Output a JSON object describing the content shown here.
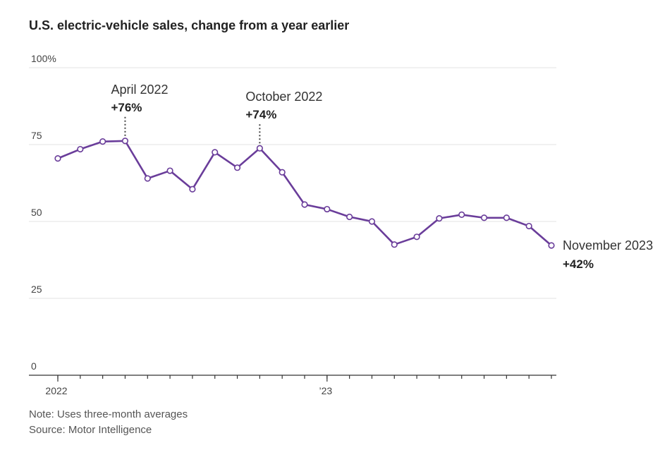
{
  "chart_data": {
    "type": "line",
    "title": "U.S. electric-vehicle sales, change from a year earlier",
    "y_unit_suffix": "%",
    "ylim": [
      0,
      100
    ],
    "yticks": [
      0,
      25,
      50,
      75,
      100
    ],
    "ytick_labels": [
      "0",
      "25",
      "50",
      "75",
      "100%"
    ],
    "x_start": "2022-01",
    "x_end": "2023-11",
    "x_labels": [
      {
        "date": "2022-01",
        "label": "2022"
      },
      {
        "date": "2023-01",
        "label": "’23"
      }
    ],
    "grid": true,
    "line_color": "#6a3d9a",
    "series": [
      {
        "x": [
          "2022-01",
          "2022-02",
          "2022-03",
          "2022-04",
          "2022-05",
          "2022-06",
          "2022-07",
          "2022-08",
          "2022-09",
          "2022-10",
          "2022-11",
          "2022-12",
          "2023-01",
          "2023-02",
          "2023-03",
          "2023-04",
          "2023-05",
          "2023-06",
          "2023-07",
          "2023-08",
          "2023-09",
          "2023-10",
          "2023-11"
        ],
        "values": [
          70.5,
          73.5,
          76,
          76.2,
          64,
          66.5,
          60.5,
          72.5,
          67.5,
          73.8,
          66,
          55.5,
          54,
          51.5,
          50,
          42.5,
          45,
          51,
          52.2,
          51.2,
          51.2,
          48.5,
          42.2
        ]
      }
    ],
    "annotations": [
      {
        "index": 3,
        "date_label": "April 2022",
        "value_label": "+76%"
      },
      {
        "index": 9,
        "date_label": "October 2022",
        "value_label": "+74%"
      },
      {
        "index": 22,
        "date_label": "November 2023",
        "value_label": "+42%"
      }
    ],
    "note": "Note: Uses three-month averages",
    "source": "Source: Motor Intelligence"
  }
}
